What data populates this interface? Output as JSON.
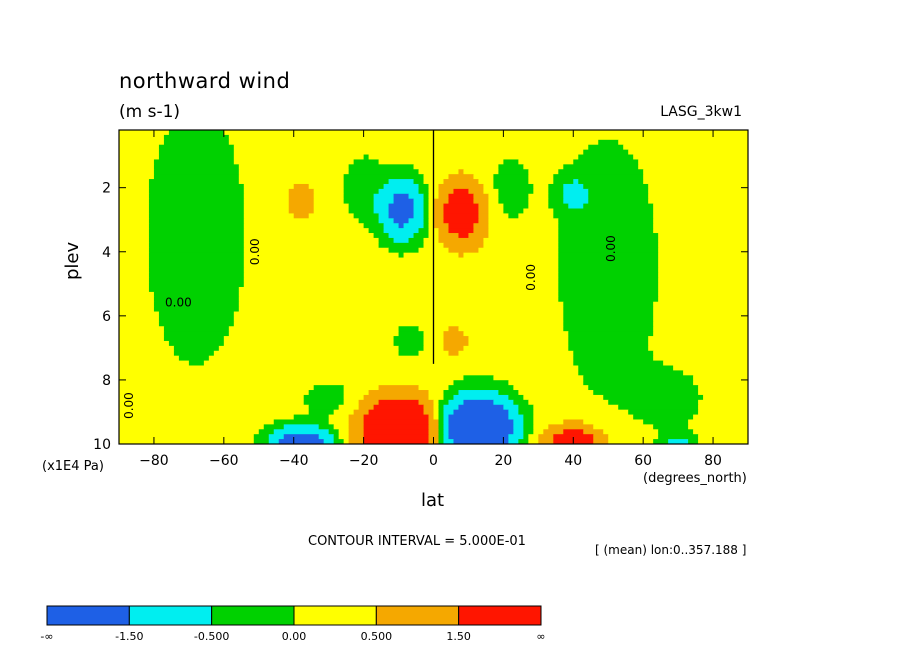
{
  "chart_data": {
    "type": "heatmap",
    "title": "northward wind",
    "units": "(m s-1)",
    "dataset": "LASG_3kw1",
    "xlabel": "lat",
    "x_units": "(degrees_north)",
    "ylabel": "plev",
    "y_units": "(x1E4 Pa)",
    "xlim": [
      -90,
      90
    ],
    "ylim": [
      10,
      0.2
    ],
    "x_ticks": [
      -80,
      -60,
      -40,
      -20,
      0,
      20,
      40,
      60,
      80
    ],
    "y_ticks": [
      2,
      4,
      6,
      8,
      10
    ],
    "footnote": "CONTOUR INTERVAL = 5.000E-01",
    "averaging_note": "[ (mean) lon:0..357.188 ]",
    "contour_labels": [
      {
        "text": "0.00",
        "lat": -51,
        "plev": 4.0,
        "rotated": true
      },
      {
        "text": "0.00",
        "lat": -73,
        "plev": 5.6,
        "rotated": false
      },
      {
        "text": "0.00",
        "lat": 51,
        "plev": 3.9,
        "rotated": true
      },
      {
        "text": "0.00",
        "lat": 28,
        "plev": 4.8,
        "rotated": true
      },
      {
        "text": "0.00",
        "lat": -87,
        "plev": 8.8,
        "rotated": true
      }
    ],
    "colorbar": {
      "labels": [
        "-∞",
        "-1.50",
        "-0.500",
        "0.00",
        "0.500",
        "1.50",
        "∞"
      ],
      "bins": [
        {
          "from": "-∞",
          "to": -1.5,
          "color": "#1e60e6"
        },
        {
          "from": -1.5,
          "to": -0.5,
          "color": "#00eef0"
        },
        {
          "from": -0.5,
          "to": 0.0,
          "color": "#00d100"
        },
        {
          "from": 0.0,
          "to": 0.5,
          "color": "#ffff00"
        },
        {
          "from": 0.5,
          "to": 1.5,
          "color": "#f5a800"
        },
        {
          "from": 1.5,
          "to": "∞",
          "color": "#ff1500"
        }
      ]
    },
    "features": [
      {
        "kind": "negative-core",
        "lat": -9,
        "plev": 2.7,
        "peak": -1.9
      },
      {
        "kind": "positive-core",
        "lat": 8,
        "plev": 2.8,
        "peak": 2.1
      },
      {
        "kind": "positive-patch",
        "lat": -38,
        "plev": 2.5,
        "peak": 0.8
      },
      {
        "kind": "negative-patch",
        "lat": 40,
        "plev": 2.2,
        "peak": -0.8
      },
      {
        "kind": "negative-patch",
        "lat": -7,
        "plev": 6.8,
        "peak": -0.8
      },
      {
        "kind": "positive-patch",
        "lat": 6,
        "plev": 6.8,
        "peak": 0.9
      },
      {
        "kind": "positive-core",
        "lat": -10,
        "plev": 9.4,
        "peak": 4.5
      },
      {
        "kind": "negative-core",
        "lat": 13,
        "plev": 9.3,
        "peak": -4.5
      },
      {
        "kind": "negative-patch",
        "lat": -38,
        "plev": 9.8,
        "peak": -2.5
      },
      {
        "kind": "positive-patch",
        "lat": 40,
        "plev": 9.8,
        "peak": 2.5
      }
    ]
  }
}
